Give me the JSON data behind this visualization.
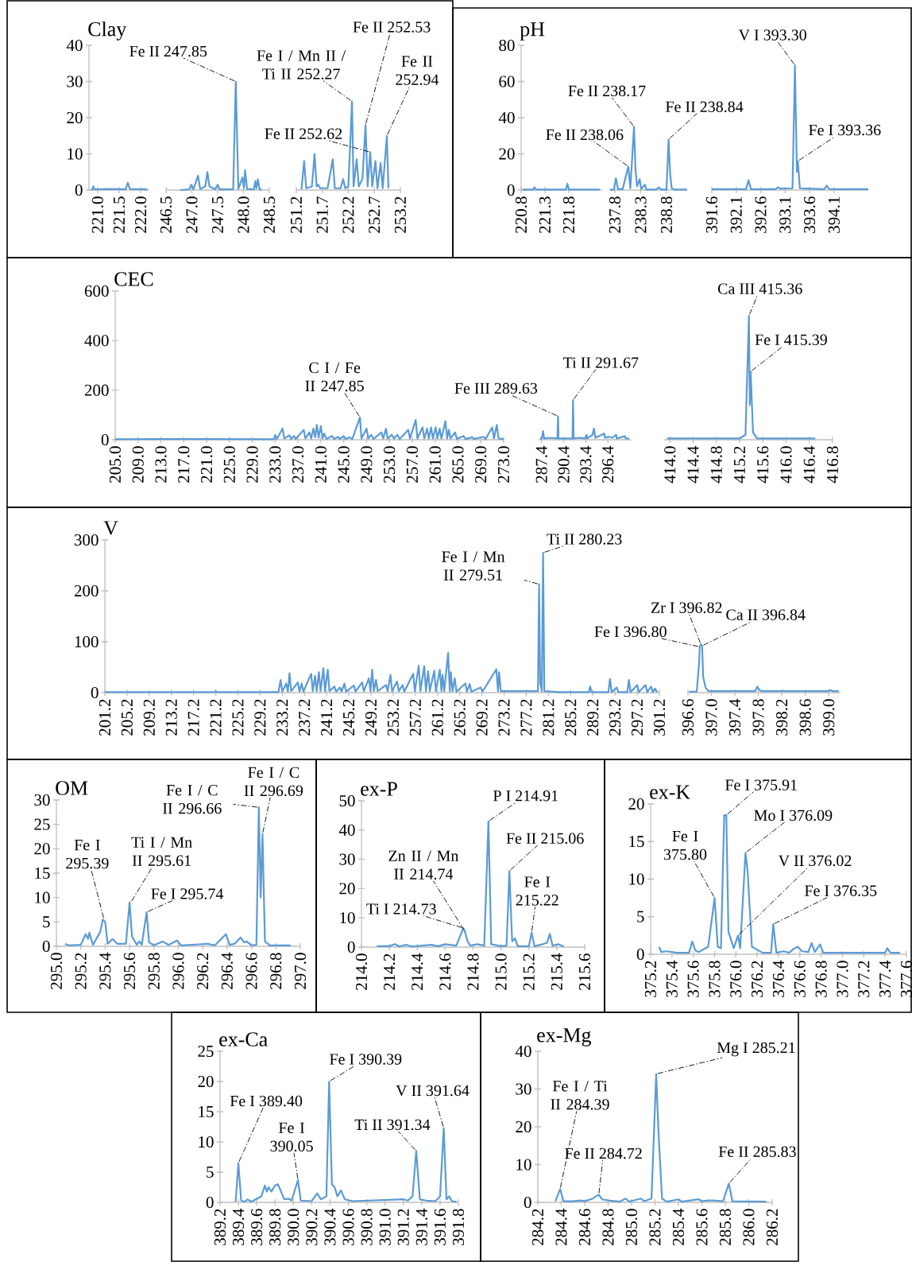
{
  "chart_data": [
    {
      "type": "line",
      "title": "Clay",
      "color": "#5b9bd5",
      "xlim": [
        220.8,
        222.2
      ],
      "ylim": [
        0,
        40
      ],
      "xticks": [
        {
          "value": 221,
          "label": "221.0"
        },
        221.5,
        {
          "value": 222,
          "label": "222.0"
        }
      ],
      "yticks": [
        0,
        10,
        20,
        30,
        40
      ],
      "x": [
        220.85,
        220.88,
        220.9,
        220.93,
        221.3,
        221.65,
        221.7,
        221.75,
        222.15
      ],
      "values": [
        0.2,
        0.2,
        1,
        0.2,
        0.3,
        0.2,
        2,
        0.3,
        0.2
      ]
    },
    {
      "type": "line",
      "color": "#5b9bd5",
      "xlim": [
        246.5,
        248.5
      ],
      "ylim": [
        0,
        40
      ],
      "xticks": [
        246.5,
        {
          "value": 247,
          "label": "247.0"
        },
        247.5,
        {
          "value": 248,
          "label": "248.0"
        },
        248.5
      ],
      "tick_labels": "x",
      "x": [
        246.78,
        246.95,
        246.99,
        247.03,
        247.12,
        247.16,
        247.26,
        247.3,
        247.34,
        247.45,
        247.5,
        247.54,
        247.8,
        247.85,
        247.9,
        247.98,
        248.01,
        248.03,
        248.07,
        248.2,
        248.23,
        248.25,
        248.28,
        248.31,
        248.35
      ],
      "values": [
        0,
        0.2,
        1.5,
        0.2,
        4,
        0.3,
        1,
        5,
        1,
        0.2,
        1.5,
        0.2,
        0.2,
        30,
        0.3,
        3.5,
        0.5,
        5.5,
        0.3,
        0.2,
        2.5,
        0.5,
        3,
        0.2,
        0.2
      ],
      "annotations": [
        {
          "text": "Fe II 247.85",
          "x": 247.85,
          "y": 30
        }
      ]
    },
    {
      "type": "line",
      "color": "#5b9bd5",
      "xlim": [
        251.2,
        253.2
      ],
      "ylim": [
        0,
        40
      ],
      "xticks": [
        251.2,
        251.7,
        252.2,
        252.7,
        253.2
      ],
      "tick_labels": "x",
      "x": [
        251.3,
        251.35,
        251.39,
        251.5,
        251.55,
        251.59,
        251.62,
        251.66,
        251.8,
        251.9,
        251.94,
        252.05,
        252.1,
        252.14,
        252.2,
        252.27,
        252.3,
        252.36,
        252.4,
        252.47,
        252.53,
        252.57,
        252.62,
        252.66,
        252.72,
        252.76,
        252.82,
        252.86,
        252.94,
        252.97
      ],
      "values": [
        0.2,
        8,
        0.5,
        1,
        10,
        1,
        1.5,
        0.5,
        0.5,
        8.5,
        0.5,
        0.5,
        3,
        0.5,
        1,
        24.5,
        1,
        8.5,
        1,
        3,
        18,
        1,
        10.5,
        1,
        8,
        0.5,
        7.5,
        0.5,
        15,
        0.5
      ],
      "annotations": [
        {
          "text": "Fe I / Mn II / Ti II 252.27",
          "x": 252.27,
          "y": 24.5
        },
        {
          "text": "Fe II 252.53",
          "x": 252.53,
          "y": 18
        },
        {
          "text": "Fe II 252.62",
          "x": 252.62,
          "y": 10.5
        },
        {
          "text": "Fe II 252.94",
          "x": 252.94,
          "y": 15
        }
      ]
    },
    {
      "type": "line",
      "title": "pH",
      "color": "#5b9bd5",
      "xlim": [
        220.8,
        222.5
      ],
      "ylim": [
        0,
        80
      ],
      "xticks": [
        220.8,
        221.3,
        221.8
      ],
      "yticks": [
        0,
        20,
        40,
        60,
        80
      ],
      "x": [
        220.83,
        221.05,
        221.08,
        221.11,
        221.74,
        221.77,
        221.8,
        222.45
      ],
      "values": [
        0.3,
        0.3,
        1.5,
        0.3,
        0.3,
        3.5,
        0.3,
        0.3
      ]
    },
    {
      "type": "line",
      "color": "#5b9bd5",
      "xlim": [
        237.7,
        239.2
      ],
      "ylim": [
        0,
        80
      ],
      "xticks": [
        237.8,
        238.3,
        238.8
      ],
      "tick_labels": "x",
      "x": [
        237.7,
        237.78,
        237.82,
        237.86,
        237.95,
        238.06,
        238.1,
        238.17,
        238.2,
        238.23,
        238.28,
        238.31,
        238.38,
        238.41,
        238.6,
        238.65,
        238.7,
        238.8,
        238.84,
        238.87,
        238.9,
        238.95,
        239.2
      ],
      "values": [
        0.2,
        0.2,
        6.5,
        0.5,
        0.5,
        13,
        1,
        35,
        11,
        2,
        6,
        0.5,
        3,
        0.3,
        0.3,
        1.5,
        0.3,
        0.3,
        28,
        9,
        1,
        0.3,
        0.3
      ],
      "annotations": [
        {
          "text": "Fe II 238.06",
          "x": 238.06,
          "y": 13
        },
        {
          "text": "Fe II 238.17",
          "x": 238.17,
          "y": 35
        },
        {
          "text": "Fe II 238.84",
          "x": 238.84,
          "y": 28
        }
      ]
    },
    {
      "type": "line",
      "color": "#5b9bd5",
      "xlim": [
        391.6,
        394.8
      ],
      "ylim": [
        0,
        80
      ],
      "xticks": [
        391.6,
        392.1,
        392.6,
        393.1,
        393.6,
        394.1
      ],
      "tick_labels": "x",
      "x": [
        391.6,
        392.0,
        392.3,
        392.35,
        392.4,
        392.7,
        392.9,
        392.95,
        393.0,
        393.25,
        393.3,
        393.34,
        393.36,
        393.4,
        393.9,
        393.95,
        394.0,
        394.8
      ],
      "values": [
        0.5,
        0.5,
        0.5,
        5.5,
        0.5,
        0.5,
        0.5,
        1.5,
        0.8,
        1,
        69,
        10,
        16,
        1,
        0.5,
        2.5,
        0.5,
        0.5
      ],
      "annotations": [
        {
          "text": "V I 393.30",
          "x": 393.3,
          "y": 69
        },
        {
          "text": "Fe I 393.36",
          "x": 393.36,
          "y": 16
        }
      ]
    },
    {
      "type": "line",
      "title": "CEC",
      "color": "#5b9bd5",
      "xlim": [
        205,
        273
      ],
      "ylim": [
        0,
        600
      ],
      "yticks": [
        0,
        200,
        400,
        600
      ],
      "xticks": [
        {
          "value": 205,
          "label": "205.0"
        },
        {
          "value": 209,
          "label": "209.0"
        },
        {
          "value": 213,
          "label": "213.0"
        },
        {
          "value": 217,
          "label": "217.0"
        },
        {
          "value": 221,
          "label": "221.0"
        },
        {
          "value": 225,
          "label": "225.0"
        },
        {
          "value": 229,
          "label": "229.0"
        },
        {
          "value": 233,
          "label": "233.0"
        },
        {
          "value": 237,
          "label": "237.0"
        },
        {
          "value": 241,
          "label": "241.0"
        },
        {
          "value": 245,
          "label": "245.0"
        },
        {
          "value": 249,
          "label": "249.0"
        },
        {
          "value": 253,
          "label": "253.0"
        },
        {
          "value": 257,
          "label": "257.0"
        },
        {
          "value": 261,
          "label": "261.0"
        },
        {
          "value": 265,
          "label": "265.0"
        },
        {
          "value": 269,
          "label": "269.0"
        },
        {
          "value": 273,
          "label": "273.0"
        }
      ],
      "x": [
        205,
        213,
        221,
        232,
        232.8,
        233,
        233.3,
        234.3,
        234.6,
        235.5,
        235.8,
        236.3,
        236.6,
        238,
        238.3,
        239,
        239.3,
        239.7,
        240,
        240.3,
        240.6,
        241,
        241.3,
        241.6,
        242,
        243,
        243.3,
        244,
        244.3,
        245,
        245.3,
        246,
        246.5,
        247.85,
        248.1,
        249,
        249.3,
        249.8,
        250.2,
        251.6,
        251.9,
        252.4,
        252.7,
        253.4,
        253.8,
        254.4,
        254.8,
        256.3,
        256.6,
        257.6,
        257.9,
        258.8,
        259.1,
        259.6,
        259.9,
        260.3,
        260.6,
        261.1,
        261.4,
        261.8,
        262.1,
        262.8,
        263.1,
        263.4,
        263.7,
        264.5,
        264.8,
        266,
        266.3,
        267.5,
        267.8,
        269.5,
        269.8,
        271,
        271.3,
        271.8,
        272.1,
        273
      ],
      "values": [
        2,
        3,
        3,
        2,
        2,
        20,
        3,
        45,
        5,
        18,
        3,
        15,
        3,
        40,
        5,
        30,
        5,
        45,
        10,
        60,
        8,
        55,
        5,
        25,
        3,
        15,
        3,
        12,
        3,
        15,
        3,
        10,
        3,
        90,
        5,
        45,
        5,
        20,
        3,
        30,
        5,
        45,
        5,
        20,
        5,
        20,
        3,
        40,
        5,
        80,
        5,
        50,
        5,
        45,
        5,
        50,
        5,
        50,
        5,
        45,
        5,
        75,
        5,
        40,
        5,
        30,
        3,
        15,
        3,
        10,
        3,
        12,
        2,
        50,
        5,
        60,
        5,
        3
      ],
      "annotations": [
        {
          "text": "C I / Fe II 247.85",
          "x": 247.85,
          "y": 90
        }
      ]
    },
    {
      "type": "line",
      "color": "#5b9bd5",
      "xlim": [
        287,
        299.5
      ],
      "ylim": [
        0,
        600
      ],
      "xticks": [
        287.4,
        290.4,
        293.4,
        296.4
      ],
      "tick_labels": "x",
      "x": [
        287.2,
        287.45,
        287.6,
        287.75,
        288.5,
        289.55,
        289.63,
        289.7,
        291.6,
        291.67,
        291.75,
        292.5,
        293.3,
        293.5,
        293.6,
        294.3,
        294.5,
        294.7,
        295.9,
        296.0,
        296.5,
        297.0,
        297.5,
        297.6,
        298.7,
        298.8,
        299.3
      ],
      "values": [
        5,
        5,
        35,
        5,
        8,
        5,
        95,
        5,
        5,
        160,
        5,
        8,
        5,
        20,
        5,
        20,
        45,
        8,
        25,
        8,
        12,
        8,
        20,
        5,
        15,
        5,
        5
      ],
      "annotations": [
        {
          "text": "Fe III 289.63",
          "x": 289.63,
          "y": 95
        },
        {
          "text": "Ti II 291.67",
          "x": 291.67,
          "y": 160
        }
      ]
    },
    {
      "type": "line",
      "color": "#5b9bd5",
      "xlim": [
        413.9,
        416.8
      ],
      "ylim": [
        0,
        600
      ],
      "xticks": [
        {
          "value": 414,
          "label": "414.0"
        },
        414.4,
        414.8,
        415.2,
        415.6,
        {
          "value": 416,
          "label": "416.0"
        },
        416.4,
        416.8
      ],
      "tick_labels": "x",
      "x": [
        413.95,
        415.2,
        415.3,
        415.36,
        415.375,
        415.39,
        415.43,
        415.5,
        416.5
      ],
      "values": [
        5,
        5,
        20,
        500,
        140,
        275,
        30,
        5,
        5
      ],
      "annotations": [
        {
          "text": "Ca III 415.36",
          "x": 415.36,
          "y": 500
        },
        {
          "text": "Fe I 415.39",
          "x": 415.39,
          "y": 275
        }
      ]
    },
    {
      "type": "line",
      "title": "V",
      "color": "#5b9bd5",
      "xlim": [
        201.2,
        301.2
      ],
      "ylim": [
        0,
        300
      ],
      "yticks": [
        0,
        100,
        200,
        300
      ],
      "xticks": [
        201.2,
        205.2,
        209.2,
        213.2,
        217.2,
        221.2,
        225.2,
        229.2,
        233.2,
        237.2,
        241.2,
        245.2,
        249.2,
        253.2,
        257.2,
        261.2,
        265.2,
        269.2,
        273.2,
        277.2,
        281.2,
        285.2,
        289.2,
        293.2,
        297.2,
        301.2
      ],
      "x": [
        201.2,
        210,
        221,
        221.2,
        221.4,
        232,
        232.5,
        232.9,
        233.2,
        233.9,
        234.2,
        234.5,
        234.8,
        236,
        236.3,
        236.7,
        237,
        238.4,
        238.7,
        239.1,
        239.4,
        239.8,
        240.1,
        240.6,
        240.9,
        241.4,
        241.7,
        242.6,
        242.9,
        243.6,
        243.9,
        244.4,
        244.7,
        246.1,
        246.4,
        247.6,
        247.9,
        248.8,
        249.1,
        249.4,
        249.7,
        250.1,
        250.4,
        251.9,
        252.2,
        252.7,
        253,
        253.9,
        254.2,
        254.9,
        255.2,
        256.8,
        257.1,
        257.8,
        258.1,
        258.8,
        259.1,
        259.5,
        259.8,
        260.6,
        260.9,
        261.6,
        261.9,
        262.1,
        262.4,
        263.1,
        263.4,
        263.6,
        263.9,
        264.3,
        264.6,
        266.2,
        266.5,
        267,
        267.3,
        269,
        269.3,
        271.8,
        272.1,
        272.3,
        272.6,
        276,
        279.3,
        279.51,
        279.7,
        280.0,
        280.23,
        280.45,
        283,
        288.5,
        288.7,
        289,
        292,
        292.3,
        292.6,
        293.5,
        293.8,
        295.4,
        295.7,
        296,
        297.2,
        297.5,
        298.7,
        299,
        299.7,
        300,
        300.4,
        300.8
      ],
      "values": [
        1,
        1,
        1,
        3,
        1,
        1,
        1,
        25,
        2,
        18,
        2,
        38,
        3,
        20,
        2,
        18,
        2,
        37,
        3,
        33,
        3,
        40,
        3,
        48,
        3,
        45,
        3,
        12,
        2,
        10,
        2,
        18,
        2,
        14,
        2,
        20,
        3,
        28,
        3,
        45,
        3,
        25,
        3,
        15,
        3,
        35,
        3,
        22,
        3,
        15,
        2,
        37,
        3,
        53,
        3,
        52,
        3,
        42,
        3,
        43,
        3,
        45,
        3,
        35,
        3,
        78,
        3,
        40,
        3,
        28,
        2,
        18,
        2,
        17,
        2,
        10,
        2,
        46,
        3,
        40,
        3,
        3,
        3,
        213,
        20,
        3,
        275,
        3,
        1,
        1,
        12,
        1,
        1,
        27,
        1,
        10,
        1,
        1,
        25,
        1,
        15,
        1,
        15,
        1,
        12,
        1,
        8,
        1
      ],
      "annotations": [
        {
          "text": "Fe I / Mn II 279.51",
          "x": 279.51,
          "y": 213
        },
        {
          "text": "Ti II 280.23",
          "x": 280.23,
          "y": 275
        }
      ]
    },
    {
      "type": "line",
      "color": "#5b9bd5",
      "xlim": [
        396.6,
        399.2
      ],
      "ylim": [
        0,
        300
      ],
      "xticks": [
        396.6,
        {
          "value": 397,
          "label": "397.0"
        },
        397.4,
        397.8,
        398.2,
        398.6,
        {
          "value": 399,
          "label": "399.0"
        }
      ],
      "tick_labels": "x",
      "x": [
        396.62,
        396.75,
        396.79,
        396.8,
        396.82,
        396.84,
        396.86,
        396.9,
        396.95,
        397.75,
        397.78,
        397.82,
        397.85,
        398.2,
        398.23,
        398.26,
        399.0,
        399.03,
        399.06,
        399.17
      ],
      "values": [
        2,
        2,
        60,
        90,
        95,
        92,
        30,
        10,
        3,
        3,
        12,
        5,
        3,
        3,
        4,
        3,
        3,
        5,
        3,
        3
      ],
      "annotations": [
        {
          "text": "Fe I 396.80",
          "x": 396.8,
          "y": 90
        },
        {
          "text": "Zr I 396.82",
          "x": 396.82,
          "y": 95
        },
        {
          "text": "Ca II 396.84",
          "x": 396.84,
          "y": 92
        }
      ]
    },
    {
      "type": "line",
      "title": "OM",
      "color": "#5b9bd5",
      "xlim": [
        295,
        297
      ],
      "ylim": [
        0,
        30
      ],
      "yticks": [
        0,
        5,
        10,
        15,
        20,
        25,
        30
      ],
      "xticks": [
        {
          "value": 295,
          "label": "295.0"
        },
        295.2,
        295.4,
        295.6,
        295.8,
        {
          "value": 296,
          "label": "296.0"
        },
        296.2,
        296.4,
        296.6,
        296.8,
        {
          "value": 297,
          "label": "297.0"
        }
      ],
      "x": [
        295.07,
        295.1,
        295.2,
        295.24,
        295.26,
        295.27,
        295.3,
        295.36,
        295.38,
        295.4,
        295.42,
        295.46,
        295.5,
        295.57,
        295.6,
        295.62,
        295.66,
        295.68,
        295.7,
        295.74,
        295.76,
        295.8,
        295.87,
        295.92,
        295.99,
        296.02,
        296.24,
        296.3,
        296.39,
        296.42,
        296.46,
        296.51,
        296.54,
        296.56,
        296.6,
        296.64,
        296.66,
        296.675,
        296.69,
        296.71,
        296.75,
        296.92
      ],
      "values": [
        0.5,
        0.2,
        0.3,
        2.5,
        1.5,
        2.8,
        0.3,
        3,
        5.5,
        5,
        0.5,
        1.5,
        0.5,
        0.5,
        9,
        2,
        0.3,
        1,
        0.3,
        7,
        0.8,
        0.2,
        1,
        0.3,
        1.2,
        0.2,
        0.5,
        0.2,
        2.5,
        0.3,
        0.5,
        1.8,
        0.8,
        1,
        0.2,
        0.3,
        28.5,
        10,
        23,
        1,
        0.2,
        0.2
      ],
      "annotations": [
        {
          "text": "Fe I 295.39",
          "x": 295.39,
          "y": 5.5
        },
        {
          "text": "Ti I / Mn II 295.61",
          "x": 295.61,
          "y": 9
        },
        {
          "text": "Fe I 295.74",
          "x": 295.74,
          "y": 7
        },
        {
          "text": "Fe I / C II 296.66",
          "x": 296.66,
          "y": 28.5
        },
        {
          "text": "Fe I / C II 296.69",
          "x": 296.69,
          "y": 23
        }
      ]
    },
    {
      "type": "line",
      "title": "ex-P",
      "color": "#5b9bd5",
      "xlim": [
        214,
        215.6
      ],
      "ylim": [
        0,
        50
      ],
      "yticks": [
        0,
        10,
        20,
        30,
        40,
        50
      ],
      "xticks": [
        {
          "value": 214,
          "label": "214.0"
        },
        214.2,
        214.4,
        214.6,
        214.8,
        {
          "value": 215,
          "label": "215.0"
        },
        215.2,
        215.4,
        215.6
      ],
      "x": [
        214.11,
        214.2,
        214.24,
        214.27,
        214.32,
        214.36,
        214.5,
        214.55,
        214.6,
        214.68,
        214.73,
        214.74,
        214.76,
        214.78,
        214.83,
        214.88,
        214.91,
        214.93,
        215.0,
        215.04,
        215.06,
        215.08,
        215.1,
        215.12,
        215.2,
        215.22,
        215.24,
        215.3,
        215.33,
        215.35,
        215.37,
        215.41,
        215.45
      ],
      "values": [
        0.3,
        0.3,
        1,
        0.2,
        0.8,
        0.2,
        0.8,
        0.3,
        1,
        0.5,
        6.5,
        5.5,
        2,
        0.5,
        1,
        0.5,
        43,
        1,
        0.3,
        0.5,
        26,
        2,
        3,
        0.3,
        0.3,
        5,
        0.3,
        1,
        1.5,
        4.5,
        0.5,
        1,
        0.2
      ],
      "annotations": [
        {
          "text": "Ti I 214.73",
          "x": 214.73,
          "y": 6.5
        },
        {
          "text": "Zn II / Mn II 214.74",
          "x": 214.74,
          "y": 5.5
        },
        {
          "text": "P I 214.91",
          "x": 214.91,
          "y": 43
        },
        {
          "text": "Fe II 215.06",
          "x": 215.06,
          "y": 26
        },
        {
          "text": "Fe I 215.22",
          "x": 215.22,
          "y": 5
        }
      ]
    },
    {
      "type": "line",
      "title": "ex-K",
      "color": "#5b9bd5",
      "xlim": [
        375.2,
        377.6
      ],
      "ylim": [
        0,
        20
      ],
      "yticks": [
        0,
        5,
        10,
        15,
        20
      ],
      "xticks": [
        375.2,
        375.4,
        375.6,
        375.8,
        {
          "value": 376,
          "label": "376.0"
        },
        376.2,
        376.4,
        376.6,
        376.8,
        {
          "value": 377,
          "label": "377.0"
        },
        377.2,
        377.4,
        377.6
      ],
      "x": [
        375.28,
        375.3,
        375.35,
        375.45,
        375.56,
        375.59,
        375.62,
        375.65,
        375.74,
        375.8,
        375.83,
        375.86,
        375.89,
        375.91,
        375.93,
        375.98,
        376.02,
        376.04,
        376.09,
        376.11,
        376.15,
        376.25,
        376.33,
        376.35,
        376.38,
        376.45,
        376.5,
        376.54,
        376.58,
        376.62,
        376.68,
        376.71,
        376.74,
        376.79,
        376.82,
        377.4,
        377.42,
        377.45,
        377.54
      ],
      "values": [
        1,
        0.3,
        0.4,
        0.2,
        0.2,
        1.7,
        0.5,
        0.3,
        1,
        7.5,
        1,
        0.8,
        18.5,
        18.5,
        3,
        0.8,
        2.5,
        0.8,
        13.5,
        11,
        1,
        0.2,
        0.2,
        4,
        0.2,
        0.4,
        0.2,
        0.7,
        1,
        0.4,
        0.3,
        1.5,
        0.3,
        1.3,
        0.2,
        0.2,
        0.8,
        0.2,
        0.2
      ],
      "annotations": [
        {
          "text": "Fe I 375.80",
          "x": 375.8,
          "y": 7.5
        },
        {
          "text": "Fe I 375.91",
          "x": 375.91,
          "y": 18.5
        },
        {
          "text": "Mo I 376.09",
          "x": 376.09,
          "y": 13.5
        },
        {
          "text": "V II 376.02",
          "x": 376.02,
          "y": 2.5
        },
        {
          "text": "Fe I 376.35",
          "x": 376.35,
          "y": 4
        }
      ]
    },
    {
      "type": "line",
      "title": "ex-Ca",
      "color": "#5b9bd5",
      "xlim": [
        389.2,
        391.8
      ],
      "ylim": [
        0,
        25
      ],
      "yticks": [
        0,
        5,
        10,
        15,
        20,
        25
      ],
      "xticks": [
        389.2,
        389.4,
        389.6,
        389.8,
        {
          "value": 390,
          "label": "390.0"
        },
        390.2,
        390.4,
        390.6,
        390.8,
        {
          "value": 391,
          "label": "391.0"
        },
        391.2,
        391.4,
        391.6,
        391.8
      ],
      "x": [
        389.37,
        389.4,
        389.43,
        389.47,
        389.5,
        389.54,
        389.65,
        389.69,
        389.71,
        389.73,
        389.76,
        389.8,
        389.83,
        389.86,
        389.9,
        389.95,
        389.98,
        390.05,
        390.08,
        390.2,
        390.26,
        390.3,
        390.36,
        390.39,
        390.42,
        390.45,
        390.48,
        390.52,
        390.56,
        390.65,
        391.2,
        391.25,
        391.3,
        391.34,
        391.38,
        391.45,
        391.55,
        391.6,
        391.64,
        391.67,
        391.7,
        391.73,
        391.78
      ],
      "values": [
        0.1,
        6.5,
        0.3,
        0.1,
        0.5,
        0.1,
        1,
        2.8,
        1.8,
        2.5,
        1.8,
        2.8,
        3,
        2,
        0.5,
        0.6,
        0.3,
        3.7,
        0.3,
        0.2,
        1.5,
        0.5,
        1,
        20,
        3,
        2.5,
        1,
        2,
        0.5,
        0.2,
        0.5,
        0.3,
        1,
        8.5,
        0.5,
        0.3,
        0.2,
        1,
        12.3,
        0.5,
        1,
        0.2,
        0.1
      ],
      "annotations": [
        {
          "text": "Fe I 389.40",
          "x": 389.4,
          "y": 6.5
        },
        {
          "text": "Fe I 390.05",
          "x": 390.05,
          "y": 3.7
        },
        {
          "text": "Fe I 390.39",
          "x": 390.39,
          "y": 20
        },
        {
          "text": "Ti II 391.34",
          "x": 391.34,
          "y": 8.5
        },
        {
          "text": "V II 391.64",
          "x": 391.64,
          "y": 12.3
        }
      ]
    },
    {
      "type": "line",
      "title": "ex-Mg",
      "color": "#5b9bd5",
      "xlim": [
        284.2,
        286.2
      ],
      "ylim": [
        0,
        40
      ],
      "yticks": [
        0,
        10,
        20,
        30,
        40
      ],
      "xticks": [
        284.2,
        284.4,
        284.6,
        284.8,
        {
          "value": 285,
          "label": "285.0"
        },
        285.2,
        285.4,
        285.6,
        285.8,
        {
          "value": 286,
          "label": "286.0"
        },
        286.2
      ],
      "x": [
        284.35,
        284.39,
        284.42,
        284.5,
        284.56,
        284.6,
        284.67,
        284.69,
        284.72,
        284.75,
        284.8,
        284.9,
        284.95,
        284.98,
        285.08,
        285.11,
        285.17,
        285.21,
        285.23,
        285.26,
        285.3,
        285.4,
        285.43,
        285.57,
        285.6,
        285.65,
        285.7,
        285.78,
        285.83,
        285.86,
        286.15
      ],
      "values": [
        0.3,
        3.5,
        0.3,
        0.3,
        0.5,
        0.3,
        1,
        1.5,
        2,
        0.8,
        0.5,
        0.2,
        1,
        0.2,
        1,
        0.3,
        1,
        34,
        18.5,
        1,
        0.2,
        0.8,
        0.2,
        0.8,
        0.3,
        0.5,
        0.5,
        0.3,
        5,
        0.3,
        0.2
      ],
      "annotations": [
        {
          "text": "Fe I / Ti II 284.39",
          "x": 284.39,
          "y": 3.5
        },
        {
          "text": "Fe II 284.72",
          "x": 284.72,
          "y": 2
        },
        {
          "text": "Mg I 285.21",
          "x": 285.21,
          "y": 34
        },
        {
          "text": "Fe II 285.83",
          "x": 285.83,
          "y": 5
        }
      ]
    }
  ]
}
